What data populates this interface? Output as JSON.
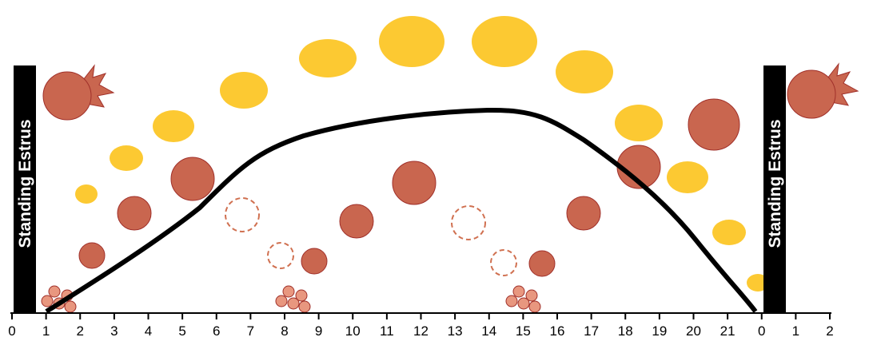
{
  "labels": {
    "left": "Standing Estrus",
    "right": "Standing Estrus"
  },
  "axis": {
    "ticks": [
      "0",
      "1",
      "2",
      "3",
      "4",
      "5",
      "6",
      "7",
      "8",
      "9",
      "10",
      "11",
      "12",
      "13",
      "14",
      "15",
      "16",
      "17",
      "18",
      "19",
      "20",
      "21",
      "0",
      "1",
      "2"
    ]
  }
}
